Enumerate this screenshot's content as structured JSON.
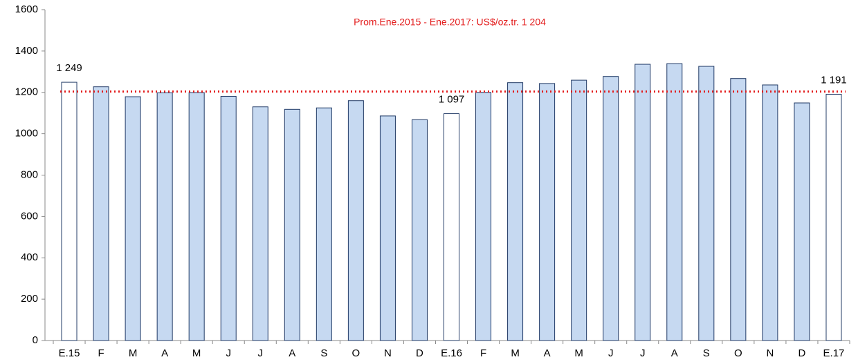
{
  "chart_data": {
    "type": "bar",
    "categories": [
      "E.15",
      "F",
      "M",
      "A",
      "M",
      "J",
      "J",
      "A",
      "S",
      "O",
      "N",
      "D",
      "E.16",
      "F",
      "M",
      "A",
      "M",
      "J",
      "J",
      "A",
      "S",
      "O",
      "N",
      "D",
      "E.17"
    ],
    "values": [
      1249,
      1227,
      1179,
      1198,
      1199,
      1181,
      1130,
      1118,
      1125,
      1160,
      1086,
      1068,
      1097,
      1200,
      1247,
      1243,
      1259,
      1277,
      1336,
      1339,
      1326,
      1267,
      1236,
      1149,
      1191
    ],
    "value_labels": [
      "1 249",
      null,
      null,
      null,
      null,
      null,
      null,
      null,
      null,
      null,
      null,
      null,
      "1 097",
      null,
      null,
      null,
      null,
      null,
      null,
      null,
      null,
      null,
      null,
      null,
      "1 191"
    ],
    "colors": [
      "#ffffff",
      "#c6d9f1",
      "#c6d9f1",
      "#c6d9f1",
      "#c6d9f1",
      "#c6d9f1",
      "#c6d9f1",
      "#c6d9f1",
      "#c6d9f1",
      "#c6d9f1",
      "#c6d9f1",
      "#c6d9f1",
      "#ffffff",
      "#c6d9f1",
      "#c6d9f1",
      "#c6d9f1",
      "#c6d9f1",
      "#c6d9f1",
      "#c6d9f1",
      "#c6d9f1",
      "#c6d9f1",
      "#c6d9f1",
      "#c6d9f1",
      "#c6d9f1",
      "#ffffff"
    ],
    "edge_color": "#1f3864",
    "reference_line": {
      "value": 1204,
      "label": "Prom.Ene.2015 - Ene.2017: US$/oz.tr. 1 204",
      "color": "#e31b1b"
    },
    "ylim": [
      0,
      1600
    ],
    "yticks": [
      0,
      200,
      400,
      600,
      800,
      1000,
      1200,
      1400,
      1600
    ]
  }
}
